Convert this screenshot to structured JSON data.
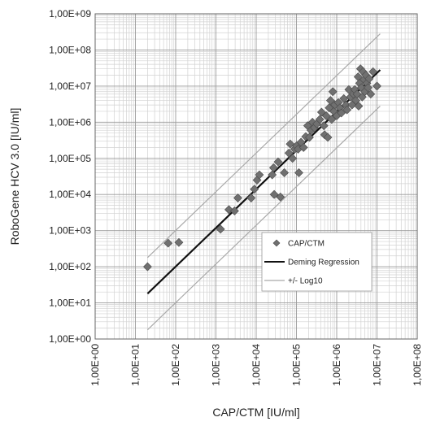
{
  "chart_data": {
    "type": "scatter",
    "xlabel": "CAP/CTM [IU/ml]",
    "ylabel": "RoboGene HCV 3.0 [IU/ml]",
    "x_scale": "log",
    "y_scale": "log",
    "xlim": [
      1,
      100000000
    ],
    "ylim": [
      1,
      1000000000
    ],
    "x_ticks": [
      1,
      10,
      100,
      1000,
      10000,
      100000,
      1000000,
      10000000,
      100000000
    ],
    "x_tick_labels": [
      "1,00E+00",
      "1,00E+01",
      "1,00E+02",
      "1,00E+03",
      "1,00E+04",
      "1,00E+05",
      "1,00E+06",
      "1,00E+07",
      "1,00E+08"
    ],
    "y_ticks": [
      1,
      10,
      100,
      1000,
      10000,
      100000,
      1000000,
      10000000,
      100000000,
      1000000000
    ],
    "y_tick_labels": [
      "1,00E+00",
      "1,00E+01",
      "1,00E+02",
      "1,00E+03",
      "1,00E+04",
      "1,00E+05",
      "1,00E+06",
      "1,00E+07",
      "1,00E+08",
      "1,00E+09"
    ],
    "grid": true,
    "legend_position": "bottom-right",
    "series": [
      {
        "name": "CAP/CTM",
        "kind": "scatter",
        "marker": "diamond",
        "color": "#707070",
        "points": [
          [
            20,
            100
          ],
          [
            65,
            450
          ],
          [
            120,
            470
          ],
          [
            1300,
            1100
          ],
          [
            2100,
            3800
          ],
          [
            2900,
            3500
          ],
          [
            3500,
            8000
          ],
          [
            7500,
            8000
          ],
          [
            9000,
            14000
          ],
          [
            10500,
            25000
          ],
          [
            12000,
            35000
          ],
          [
            25000,
            35000
          ],
          [
            27000,
            55000
          ],
          [
            28000,
            10000
          ],
          [
            35000,
            80000
          ],
          [
            40000,
            8500
          ],
          [
            50000,
            40000
          ],
          [
            65000,
            140000
          ],
          [
            70000,
            250000
          ],
          [
            80000,
            100000
          ],
          [
            90000,
            180000
          ],
          [
            100000,
            220000
          ],
          [
            110000,
            180000
          ],
          [
            115000,
            40000
          ],
          [
            130000,
            280000
          ],
          [
            150000,
            200000
          ],
          [
            170000,
            400000
          ],
          [
            190000,
            800000
          ],
          [
            210000,
            380000
          ],
          [
            230000,
            600000
          ],
          [
            250000,
            1000000
          ],
          [
            280000,
            700000
          ],
          [
            320000,
            900000
          ],
          [
            380000,
            1200000
          ],
          [
            420000,
            1900000
          ],
          [
            480000,
            800000
          ],
          [
            500000,
            450000
          ],
          [
            550000,
            1500000
          ],
          [
            600000,
            380000
          ],
          [
            650000,
            2500000
          ],
          [
            700000,
            4000000
          ],
          [
            750000,
            1200000
          ],
          [
            800000,
            7000000
          ],
          [
            850000,
            2000000
          ],
          [
            900000,
            3000000
          ],
          [
            1000000,
            1500000
          ],
          [
            1100000,
            3500000
          ],
          [
            1200000,
            2500000
          ],
          [
            1300000,
            1800000
          ],
          [
            1500000,
            4500000
          ],
          [
            1700000,
            3000000
          ],
          [
            1800000,
            2200000
          ],
          [
            2000000,
            8000000
          ],
          [
            2200000,
            5000000
          ],
          [
            2400000,
            3000000
          ],
          [
            2600000,
            6000000
          ],
          [
            2800000,
            8000000
          ],
          [
            3000000,
            4000000
          ],
          [
            3200000,
            6000000
          ],
          [
            3400000,
            18000000
          ],
          [
            3500000,
            2800000
          ],
          [
            3700000,
            12000000
          ],
          [
            3900000,
            30000000
          ],
          [
            4100000,
            9000000
          ],
          [
            4300000,
            5000000
          ],
          [
            4500000,
            25000000
          ],
          [
            4800000,
            15000000
          ],
          [
            5000000,
            7000000
          ],
          [
            5300000,
            20000000
          ],
          [
            5600000,
            12000000
          ],
          [
            6000000,
            9000000
          ],
          [
            6400000,
            16000000
          ],
          [
            7000000,
            6000000
          ],
          [
            8000000,
            25000000
          ],
          [
            10000000,
            10000000
          ]
        ]
      },
      {
        "name": "Deming Regression",
        "kind": "line",
        "color": "#111111",
        "points": [
          [
            20,
            18
          ],
          [
            12000000,
            28000000
          ]
        ]
      },
      {
        "name": "+/- Log10",
        "kind": "line",
        "color": "#a9a9a9",
        "lines": [
          [
            [
              20,
              180
            ],
            [
              12000000,
              280000000
            ]
          ],
          [
            [
              20,
              1.8
            ],
            [
              12000000,
              2800000
            ]
          ]
        ]
      }
    ]
  }
}
